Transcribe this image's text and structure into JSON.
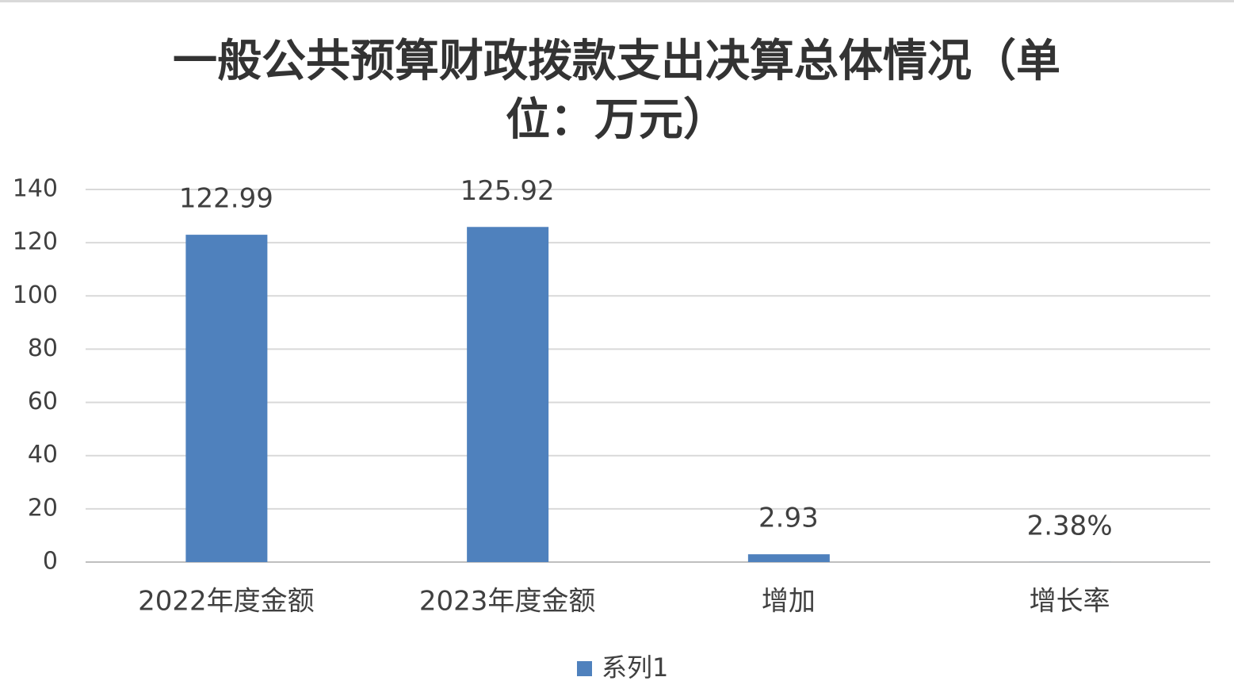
{
  "chart_data": {
    "type": "bar",
    "title": "一般公共预算财政拨款支出决算总体情况（单位：万元）",
    "categories": [
      "2022年度金额",
      "2023年度金额",
      "增加",
      "增长率"
    ],
    "series": [
      {
        "name": "系列1",
        "color": "#4f81bd",
        "values": [
          122.99,
          125.92,
          2.93,
          0.0238
        ],
        "value_labels": [
          "122.99",
          "125.92",
          "2.93",
          "2.38%"
        ]
      }
    ],
    "ylim": [
      0,
      140
    ],
    "yticks": [
      0,
      20,
      40,
      60,
      80,
      100,
      120,
      140
    ],
    "grid": true,
    "legend": "bottom"
  }
}
